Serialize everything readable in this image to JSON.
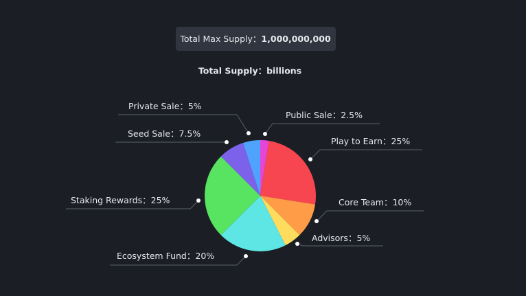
{
  "supply_box": {
    "label": "Total Max Supply：",
    "value": "1,000,000,000"
  },
  "chart_data": {
    "type": "pie",
    "title": "Total Supply：billions",
    "separator": "：",
    "categories": [
      "Public Sale",
      "Play to Earn",
      "Core Team",
      "Advisors",
      "Ecosystem Fund",
      "Staking Rewards",
      "Seed Sale",
      "Private Sale"
    ],
    "values": [
      2.5,
      25,
      10,
      5,
      20,
      25,
      7.5,
      5
    ],
    "value_labels": [
      "2.5%",
      "25%",
      "10%",
      "5%",
      "20%",
      "25%",
      "7.5%",
      "5%"
    ],
    "colors": [
      "#e546d6",
      "#f7464f",
      "#ff9c47",
      "#fedd5e",
      "#5de6e4",
      "#58e360",
      "#7c62ea",
      "#4fa3fd"
    ]
  }
}
